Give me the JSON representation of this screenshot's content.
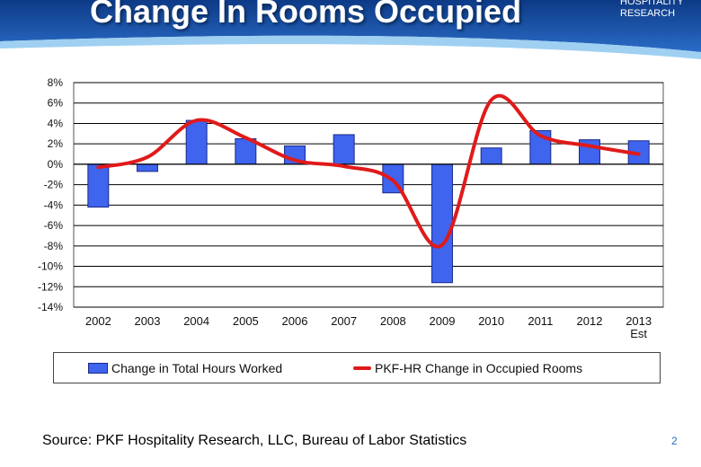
{
  "slide": {
    "title": "Change In Rooms Occupied",
    "logo_line1": "HOSPITALITY",
    "logo_line2": "RESEARCH",
    "source": "Source: PKF Hospitality Research, LLC, Bureau of Labor Statistics",
    "page_number": "2"
  },
  "colors": {
    "header_blue": "#1b4f9c",
    "bar_fill": "#3f64ee",
    "line": "#e01a1a"
  },
  "chart_data": {
    "type": "bar",
    "categories": [
      "2002",
      "2003",
      "2004",
      "2005",
      "2006",
      "2007",
      "2008",
      "2009",
      "2010",
      "2011",
      "2012",
      "2013\nEst"
    ],
    "ylim": [
      -14,
      8
    ],
    "yticks": [
      "8%",
      "6%",
      "4%",
      "2%",
      "0%",
      "-2%",
      "-4%",
      "-6%",
      "-8%",
      "-10%",
      "-12%",
      "-14%"
    ],
    "grid": true,
    "legend_position": "bottom",
    "series": [
      {
        "name": "Change in Total Hours Worked",
        "type": "bar",
        "values": [
          -4.2,
          -0.7,
          4.3,
          2.5,
          1.8,
          2.9,
          -2.8,
          -11.6,
          1.6,
          3.3,
          2.4,
          2.3
        ]
      },
      {
        "name": "PKF-HR Change in Occupied Rooms",
        "type": "line",
        "values": [
          -0.3,
          0.7,
          4.3,
          2.6,
          0.4,
          -0.2,
          -1.6,
          -7.9,
          6.3,
          2.8,
          1.8,
          1.0
        ]
      }
    ]
  }
}
